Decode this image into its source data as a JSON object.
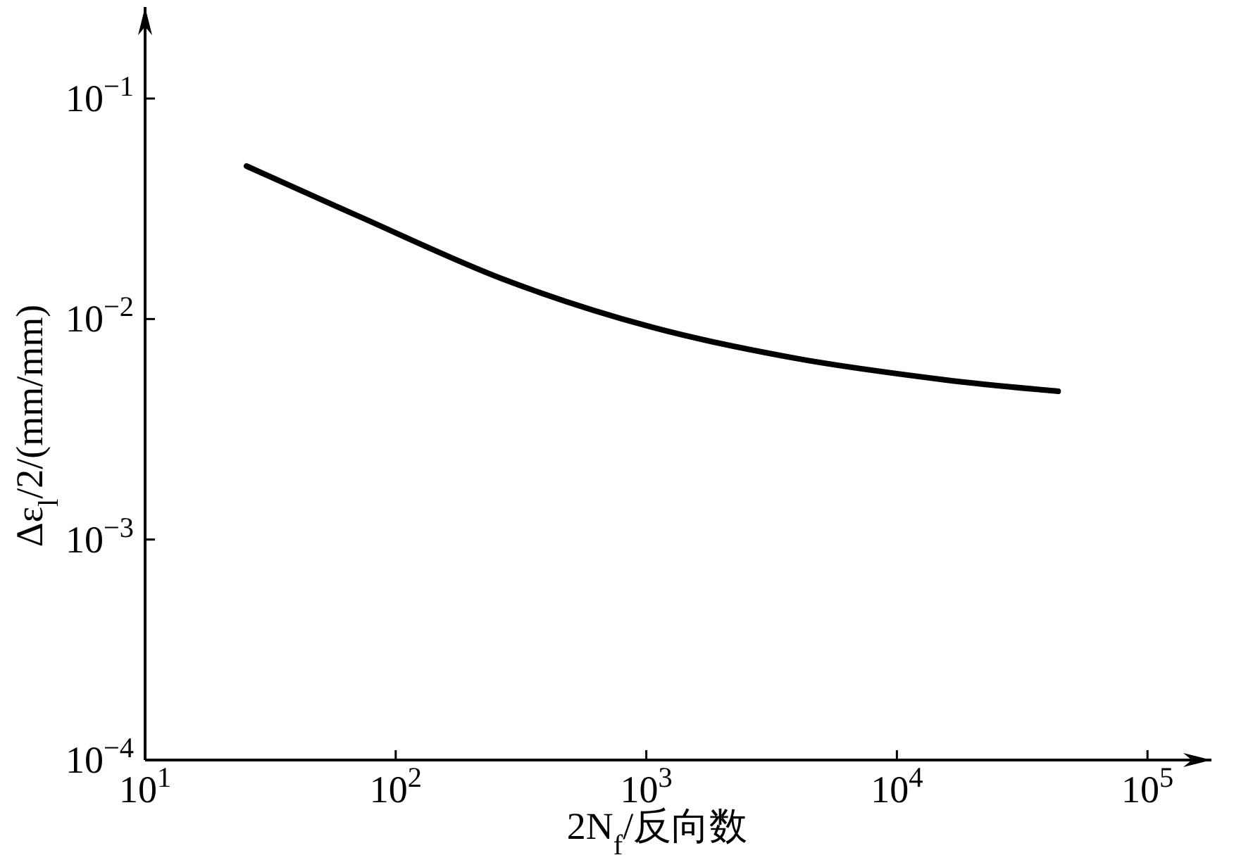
{
  "chart_data": {
    "type": "line",
    "log": "xy",
    "xlabel": "2N$_{f}$/反向数",
    "ylabel": "Δε$_{l}$/2/(mm/mm)",
    "x": [
      25.4,
      70.5,
      271,
      1047,
      4050,
      15500,
      44000
    ],
    "series": [
      {
        "color": "#000000",
        "values": [
          0.0494,
          0.0294,
          0.0151,
          0.0092,
          0.0066,
          0.0053,
          0.0047
        ]
      }
    ],
    "xlim": [
      10,
      180000
    ],
    "ylim": [
      0.0001,
      0.26
    ],
    "xticks": [
      {
        "value": 10,
        "label": "10$^{1}$"
      },
      {
        "value": 100,
        "label": "10$^{2}$"
      },
      {
        "value": 1000,
        "label": "10$^{3}$"
      },
      {
        "value": 10000,
        "label": "10$^{4}$"
      },
      {
        "value": 100000,
        "label": "10$^{5}$"
      }
    ],
    "yticks": [
      {
        "value": 0.0001,
        "label": "10$^{−4}$"
      },
      {
        "value": 0.001,
        "label": "10$^{−3}$"
      },
      {
        "value": 0.01,
        "label": "10$^{−2}$"
      },
      {
        "value": 0.1,
        "label": "10$^{−1}$"
      }
    ]
  }
}
